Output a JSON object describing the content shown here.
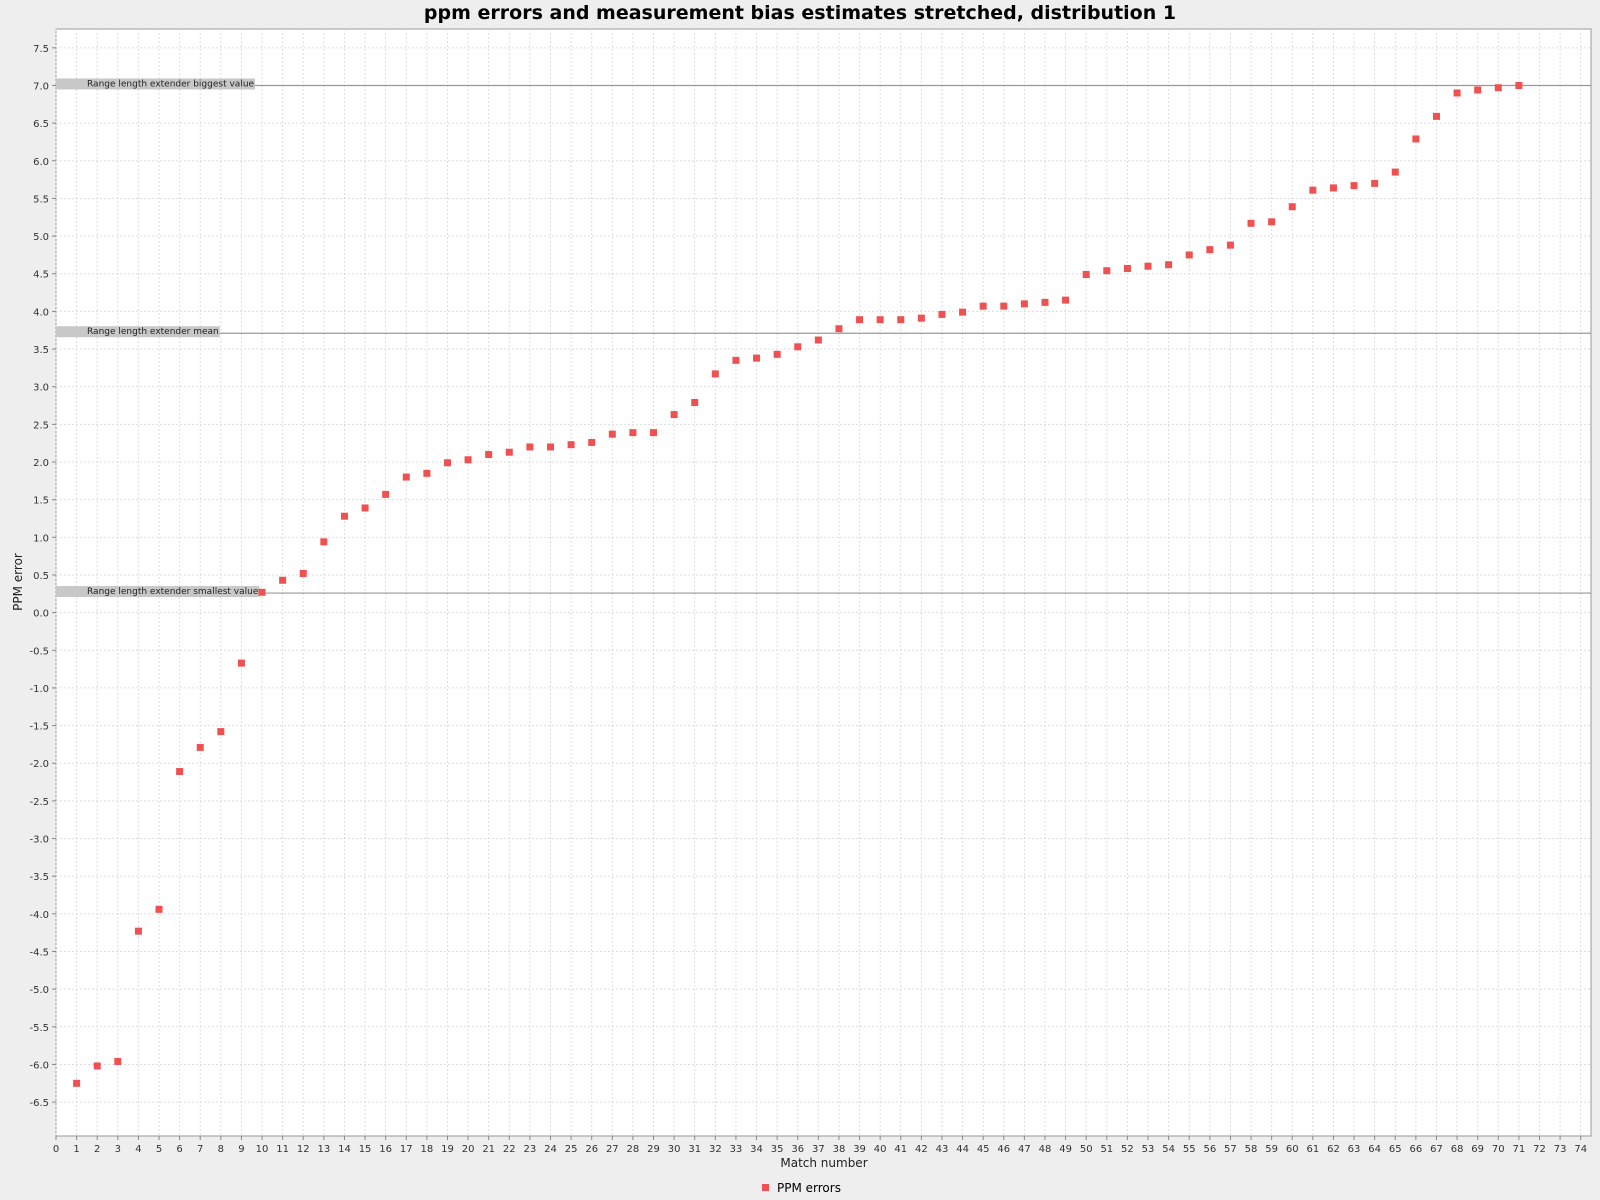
{
  "chart_data": {
    "type": "scatter",
    "title": "ppm errors and measurement bias estimates stretched, distribution 1",
    "xlabel": "Match number",
    "ylabel": "PPM error",
    "xlim": [
      0,
      74.5
    ],
    "ylim": [
      -6.95,
      7.75
    ],
    "xticks": [
      0,
      1,
      2,
      3,
      4,
      5,
      6,
      7,
      8,
      9,
      10,
      11,
      12,
      13,
      14,
      15,
      16,
      17,
      18,
      19,
      20,
      21,
      22,
      23,
      24,
      25,
      26,
      27,
      28,
      29,
      30,
      31,
      32,
      33,
      34,
      35,
      36,
      37,
      38,
      39,
      40,
      41,
      42,
      43,
      44,
      45,
      46,
      47,
      48,
      49,
      50,
      51,
      52,
      53,
      54,
      55,
      56,
      57,
      58,
      59,
      60,
      61,
      62,
      63,
      64,
      65,
      66,
      67,
      68,
      69,
      70,
      71,
      72,
      73,
      74
    ],
    "ytick_labels": [
      "7.5",
      "7.0",
      "6.5",
      "6.0",
      "5.5",
      "5.0",
      "4.5",
      "4.0",
      "3.5",
      "3.0",
      "2.5",
      "2.0",
      "1.5",
      "1.0",
      "0.5",
      "0.0",
      "-0.5",
      "-1.0",
      "-1.5",
      "-2.0",
      "-2.5",
      "-3.0",
      "-3.5",
      "-4.0",
      "-4.5",
      "-5.0",
      "-5.5",
      "-6.0",
      "-6.5"
    ],
    "grid": true,
    "legend_placement": "bottom-center",
    "marker_color": "#f05050",
    "series": [
      {
        "name": "PPM errors",
        "x": [
          1,
          2,
          3,
          4,
          5,
          6,
          7,
          8,
          9,
          10,
          11,
          12,
          13,
          14,
          15,
          16,
          17,
          18,
          19,
          20,
          21,
          22,
          23,
          24,
          25,
          26,
          27,
          28,
          29,
          30,
          31,
          32,
          33,
          34,
          35,
          36,
          37,
          38,
          39,
          40,
          41,
          42,
          43,
          44,
          45,
          46,
          47,
          48,
          49,
          50,
          51,
          52,
          53,
          54,
          55,
          56,
          57,
          58,
          59,
          60,
          61,
          62,
          63,
          64,
          65,
          66,
          67,
          68,
          69,
          70,
          71
        ],
        "y": [
          -6.25,
          -6.02,
          -5.96,
          -4.23,
          -3.94,
          -2.11,
          -1.79,
          -1.58,
          -0.67,
          0.27,
          0.43,
          0.52,
          0.94,
          1.28,
          1.39,
          1.57,
          1.8,
          1.85,
          1.99,
          2.03,
          2.1,
          2.13,
          2.2,
          2.2,
          2.23,
          2.26,
          2.37,
          2.39,
          2.39,
          2.63,
          2.79,
          3.17,
          3.35,
          3.38,
          3.43,
          3.53,
          3.62,
          3.77,
          3.89,
          3.89,
          3.89,
          3.91,
          3.96,
          3.99,
          4.07,
          4.07,
          4.1,
          4.12,
          4.15,
          4.49,
          4.54,
          4.57,
          4.6,
          4.62,
          4.75,
          4.82,
          4.88,
          5.17,
          5.19,
          5.39,
          5.61,
          5.64,
          5.67,
          5.7,
          5.85,
          6.29,
          6.59,
          6.9,
          6.94,
          6.97,
          7.0
        ]
      }
    ],
    "markers": [
      {
        "label": "Range length extender biggest value",
        "value": 7.0
      },
      {
        "label": "Range length extender mean",
        "value": 3.71
      },
      {
        "label": "Range length extender smallest value",
        "value": 0.26
      }
    ]
  }
}
